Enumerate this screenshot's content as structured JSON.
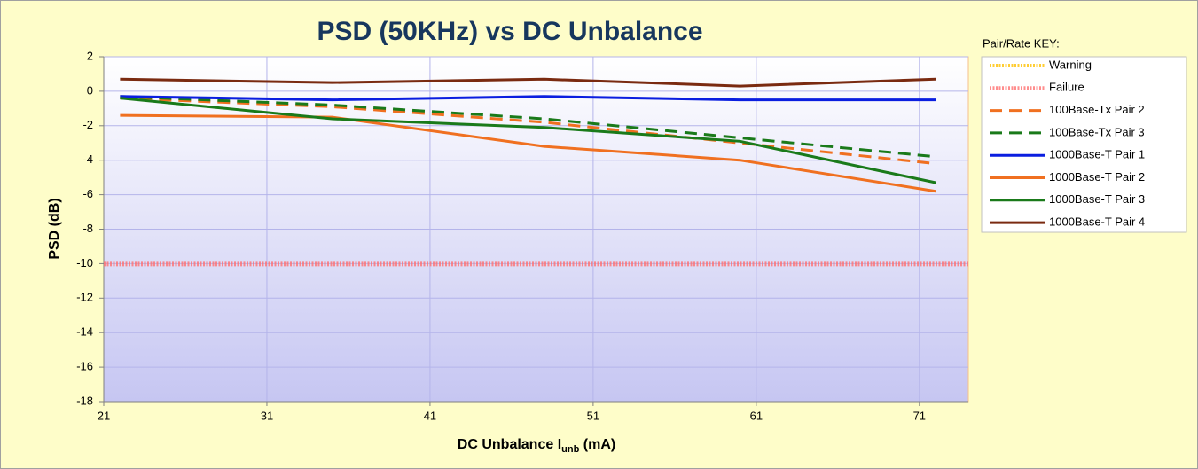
{
  "chart_data": {
    "type": "line",
    "title": "PSD (50KHz) vs DC Unbalance",
    "x_label": "DC Unbalance I",
    "x_label_sub": "unb",
    "x_label_suffix": " (mA)",
    "y_label": "PSD (dB)",
    "legend_title": "Pair/Rate KEY:",
    "legend": "right",
    "grid": true,
    "xlim": [
      21,
      74
    ],
    "xticks": [
      21,
      31,
      41,
      51,
      61,
      71
    ],
    "ylim": [
      -18,
      2
    ],
    "yticks": [
      -18,
      -16,
      -14,
      -12,
      -10,
      -8,
      -6,
      -4,
      -2,
      0,
      2
    ],
    "x": [
      22,
      35,
      48,
      60,
      72
    ],
    "series": [
      {
        "name": "Warning",
        "color": "#ffc000",
        "style": "hatched",
        "x": [
          21,
          74
        ],
        "values": [
          null,
          null
        ]
      },
      {
        "name": "Failure",
        "color": "#ff7070",
        "style": "hatched",
        "x": [
          21,
          74
        ],
        "values": [
          -10,
          -10
        ]
      },
      {
        "name": "100Base-Tx Pair 2",
        "color": "#f07020",
        "style": "dashed",
        "values": [
          -0.4,
          -0.9,
          -1.8,
          -3.0,
          -4.2
        ]
      },
      {
        "name": "100Base-Tx Pair 3",
        "color": "#1a7a1a",
        "style": "dashed",
        "values": [
          -0.3,
          -0.8,
          -1.6,
          -2.7,
          -3.8
        ]
      },
      {
        "name": "1000Base-T Pair 1",
        "color": "#0a1ee0",
        "style": "solid",
        "values": [
          -0.3,
          -0.5,
          -0.3,
          -0.5,
          -0.5
        ]
      },
      {
        "name": "1000Base-T Pair 2",
        "color": "#f07020",
        "style": "solid",
        "values": [
          -1.4,
          -1.5,
          -3.2,
          -4.0,
          -5.8
        ]
      },
      {
        "name": "1000Base-T Pair 3",
        "color": "#1a7a1a",
        "style": "solid",
        "values": [
          -0.4,
          -1.6,
          -2.1,
          -2.9,
          -5.3
        ]
      },
      {
        "name": "1000Base-T Pair 4",
        "color": "#7a2a10",
        "style": "solid",
        "values": [
          0.7,
          0.5,
          0.7,
          0.3,
          0.7
        ]
      }
    ]
  }
}
